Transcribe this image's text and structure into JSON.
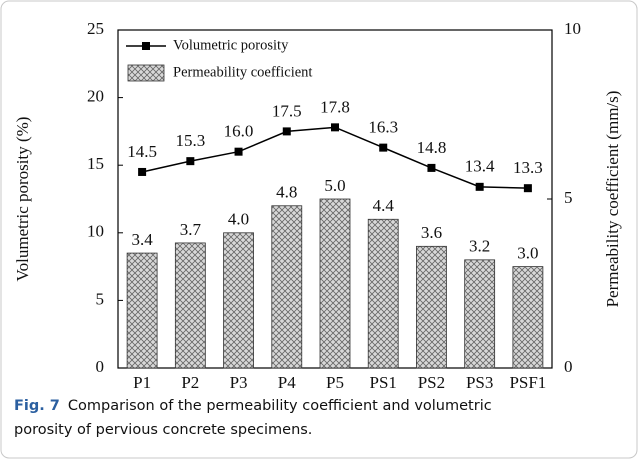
{
  "chart_data": {
    "type": "bar",
    "categories": [
      "P1",
      "P2",
      "P3",
      "P4",
      "P5",
      "PS1",
      "PS2",
      "PS3",
      "PSF1"
    ],
    "series": [
      {
        "name": "Volumetric porosity",
        "type": "line",
        "color": "#000000",
        "values": [
          14.5,
          15.3,
          16.0,
          17.5,
          17.8,
          16.3,
          14.8,
          13.4,
          13.3
        ],
        "value_labels": [
          "14.5",
          "15.3",
          "16.0",
          "17.5",
          "17.8",
          "16.3",
          "14.8",
          "13.4",
          "13.3"
        ]
      },
      {
        "name": "Permeability coefficient",
        "type": "bar",
        "axis": "y2",
        "color": "#b0b0b0",
        "values": [
          3.4,
          3.7,
          4.0,
          4.8,
          5.0,
          4.4,
          3.6,
          3.2,
          3.0
        ],
        "value_labels": [
          "3.4",
          "3.7",
          "4.0",
          "4.8",
          "5.0",
          "4.4",
          "3.6",
          "3.2",
          "3.0"
        ]
      }
    ],
    "ylabel": "Volumetric porosity (%)",
    "y2label": "Permeability coefficient (mm/s)",
    "ylim": [
      0,
      25
    ],
    "yticks": [
      0,
      5,
      10,
      15,
      20,
      25
    ],
    "y2lim": [
      0,
      10
    ],
    "y2ticks": [
      0,
      5,
      10
    ],
    "legend": "upper left"
  },
  "caption": {
    "label": "Fig. 7",
    "text": "Comparison of the permeability coefficient and volumetric",
    "text2": "porosity of pervious concrete specimens."
  }
}
